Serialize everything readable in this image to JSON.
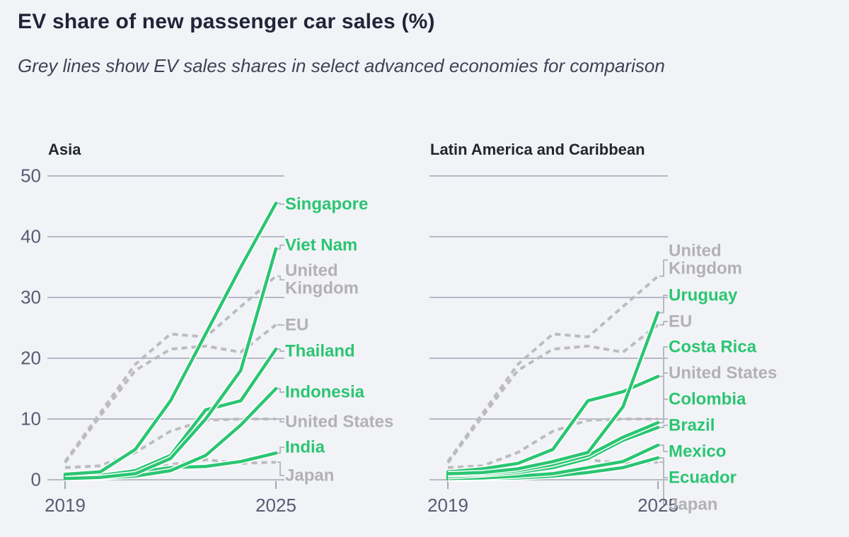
{
  "header": {
    "title": "EV share of new passenger car sales (%)",
    "subtitle": "Grey lines show EV sales shares in select advanced economies for comparison"
  },
  "colors": {
    "emerging_line": "#2bc572",
    "emerging_label": "#2bc572",
    "advanced_line": "#bcbcbe",
    "advanced_label": "#b2b2b4",
    "gridline": "#a2a8b6",
    "axis_text": "#565d72",
    "leader": "#b6bac3",
    "background": "#f2f3f7",
    "casing": "#ffffff"
  },
  "chart_data": [
    {
      "type": "line",
      "title": "Asia",
      "x": [
        2019,
        2020,
        2021,
        2022,
        2023,
        2024,
        2025
      ],
      "x_tick_labels": [
        "2019",
        "2025"
      ],
      "ylim": [
        0,
        50
      ],
      "y_ticks": [
        0,
        10,
        20,
        30,
        40,
        50
      ],
      "grid": "horizontal",
      "legend_position": "right-inline-labels",
      "series": [
        {
          "name": "Singapore",
          "role": "emerging",
          "values": [
            0.9,
            1.3,
            5.0,
            13.0,
            24.0,
            35.0,
            45.5
          ]
        },
        {
          "name": "Viet Nam",
          "role": "emerging",
          "values": [
            0.2,
            0.4,
            1.0,
            3.5,
            10.0,
            18.0,
            38.0
          ]
        },
        {
          "name": "United Kingdom",
          "role": "advanced",
          "values": [
            3.0,
            11.0,
            19.0,
            24.0,
            23.5,
            28.5,
            33.5
          ]
        },
        {
          "name": "EU",
          "role": "advanced",
          "values": [
            2.8,
            10.5,
            18.0,
            21.5,
            22.0,
            21.0,
            25.5
          ]
        },
        {
          "name": "Thailand",
          "role": "emerging",
          "values": [
            0.5,
            0.7,
            1.5,
            4.0,
            11.5,
            13.0,
            21.5
          ]
        },
        {
          "name": "Indonesia",
          "role": "emerging",
          "values": [
            0.2,
            0.3,
            0.6,
            1.5,
            4.0,
            9.0,
            15.0
          ]
        },
        {
          "name": "United States",
          "role": "advanced",
          "values": [
            2.0,
            2.3,
            4.5,
            8.0,
            9.8,
            10.0,
            10.0
          ]
        },
        {
          "name": "India",
          "role": "emerging",
          "values": [
            0.7,
            0.8,
            1.2,
            2.0,
            2.2,
            3.0,
            4.4
          ]
        },
        {
          "name": "Japan",
          "role": "advanced",
          "values": [
            0.7,
            0.7,
            1.0,
            2.5,
            3.3,
            2.7,
            2.9
          ]
        }
      ]
    },
    {
      "type": "line",
      "title": "Latin America and Caribbean",
      "x": [
        2019,
        2020,
        2021,
        2022,
        2023,
        2024,
        2025
      ],
      "x_tick_labels": [
        "2019",
        "2025"
      ],
      "ylim": [
        0,
        50
      ],
      "y_ticks": [
        0,
        10,
        20,
        30,
        40,
        50
      ],
      "grid": "horizontal",
      "legend_position": "right-inline-labels",
      "series": [
        {
          "name": "United Kingdom",
          "role": "advanced",
          "values": [
            3.0,
            11.0,
            19.0,
            24.0,
            23.5,
            28.5,
            33.5
          ]
        },
        {
          "name": "Uruguay",
          "role": "emerging",
          "values": [
            1.0,
            1.2,
            1.8,
            3.0,
            4.5,
            12.0,
            27.5
          ]
        },
        {
          "name": "EU",
          "role": "advanced",
          "values": [
            2.8,
            10.5,
            18.0,
            21.5,
            22.0,
            21.0,
            25.5
          ]
        },
        {
          "name": "Costa Rica",
          "role": "emerging",
          "values": [
            1.3,
            1.8,
            2.7,
            5.0,
            13.0,
            14.5,
            17.0
          ]
        },
        {
          "name": "United States",
          "role": "advanced",
          "values": [
            2.0,
            2.3,
            4.5,
            8.0,
            9.8,
            10.0,
            10.0
          ]
        },
        {
          "name": "Colombia",
          "role": "emerging",
          "values": [
            0.8,
            1.0,
            1.5,
            2.5,
            4.0,
            7.0,
            9.4
          ]
        },
        {
          "name": "Brazil",
          "role": "emerging",
          "values": [
            0.5,
            0.8,
            1.2,
            2.0,
            3.5,
            6.5,
            8.6
          ]
        },
        {
          "name": "Mexico",
          "role": "emerging",
          "values": [
            0.2,
            0.3,
            0.6,
            1.0,
            2.0,
            3.0,
            5.7
          ]
        },
        {
          "name": "Ecuador",
          "role": "emerging",
          "values": [
            0.1,
            0.2,
            0.3,
            0.6,
            1.2,
            2.0,
            3.6
          ]
        },
        {
          "name": "Japan",
          "role": "advanced",
          "values": [
            0.7,
            0.7,
            1.0,
            2.5,
            3.3,
            2.7,
            2.9
          ]
        }
      ]
    }
  ]
}
